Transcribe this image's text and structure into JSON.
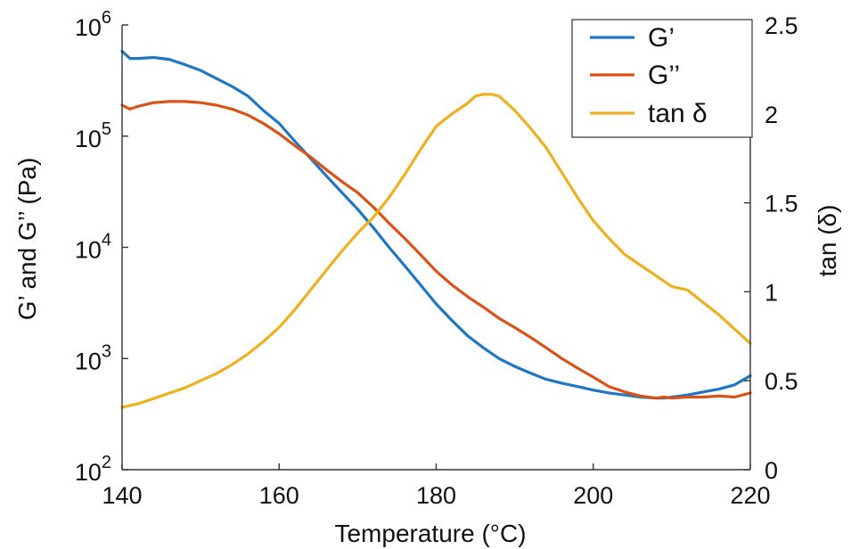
{
  "chart_data": {
    "type": "line",
    "title": "",
    "xlabel": "Temperature (°C)",
    "ylabel_left": "G’ and G’’ (Pa)",
    "ylabel_right": "tan (δ)",
    "xlim": [
      140,
      220
    ],
    "ylim_left": [
      100,
      1000000
    ],
    "ylim_right": [
      0,
      2.5
    ],
    "left_scale": "log",
    "x_ticks": [
      "140",
      "160",
      "180",
      "200",
      "220"
    ],
    "y_left_ticks": [
      {
        "base": "10",
        "exp": "2"
      },
      {
        "base": "10",
        "exp": "3"
      },
      {
        "base": "10",
        "exp": "4"
      },
      {
        "base": "10",
        "exp": "5"
      },
      {
        "base": "10",
        "exp": "6"
      }
    ],
    "y_right_ticks": [
      "0",
      "0.5",
      "1",
      "1.5",
      "2",
      "2.5"
    ],
    "grid": false,
    "legend_position": "top-right",
    "series": [
      {
        "name": "G’",
        "axis": "left",
        "color": "#1f77c4",
        "x": [
          140,
          141,
          142,
          144,
          146,
          148,
          150,
          152,
          154,
          156,
          158,
          160,
          162,
          164,
          166,
          168,
          170,
          172,
          174,
          176,
          178,
          180,
          182,
          184,
          186,
          188,
          190,
          192,
          194,
          196,
          198,
          200,
          202,
          204,
          206,
          208,
          209,
          210,
          212,
          214,
          216,
          218,
          220
        ],
        "y": [
          580000,
          500000,
          500000,
          510000,
          490000,
          440000,
          390000,
          330000,
          280000,
          230000,
          170000,
          130000,
          90000,
          63000,
          44000,
          31000,
          22000,
          15000,
          10000,
          6800,
          4600,
          3100,
          2200,
          1600,
          1250,
          1000,
          850,
          740,
          650,
          600,
          560,
          520,
          490,
          470,
          450,
          440,
          440,
          450,
          470,
          500,
          530,
          580,
          700
        ]
      },
      {
        "name": "G’’",
        "axis": "left",
        "color": "#d95319",
        "x": [
          140,
          141,
          142,
          144,
          146,
          148,
          150,
          152,
          154,
          156,
          158,
          160,
          162,
          164,
          166,
          168,
          170,
          172,
          174,
          176,
          178,
          180,
          182,
          184,
          186,
          188,
          190,
          192,
          194,
          196,
          198,
          200,
          202,
          204,
          206,
          208,
          209,
          210,
          212,
          214,
          216,
          218,
          220
        ],
        "y": [
          190000,
          175000,
          185000,
          200000,
          205000,
          205000,
          200000,
          190000,
          175000,
          155000,
          130000,
          105000,
          82000,
          65000,
          50000,
          39000,
          31000,
          23000,
          16500,
          12000,
          8600,
          6100,
          4600,
          3600,
          2900,
          2300,
          1900,
          1550,
          1250,
          1000,
          820,
          680,
          560,
          500,
          460,
          440,
          450,
          440,
          450,
          450,
          460,
          450,
          490
        ]
      },
      {
        "name": "tan δ",
        "axis": "right",
        "color": "#edb120",
        "x": [
          140,
          142,
          144,
          146,
          148,
          150,
          152,
          154,
          156,
          158,
          160,
          162,
          164,
          166,
          168,
          170,
          172,
          174,
          176,
          178,
          180,
          182,
          184,
          185,
          186,
          187,
          188,
          190,
          192,
          194,
          196,
          198,
          200,
          202,
          204,
          206,
          208,
          210,
          212,
          214,
          216,
          218,
          220
        ],
        "y": [
          0.35,
          0.37,
          0.4,
          0.43,
          0.46,
          0.5,
          0.54,
          0.59,
          0.65,
          0.72,
          0.8,
          0.9,
          1.01,
          1.12,
          1.23,
          1.33,
          1.42,
          1.53,
          1.66,
          1.8,
          1.93,
          2.0,
          2.06,
          2.1,
          2.11,
          2.11,
          2.1,
          2.02,
          1.92,
          1.81,
          1.67,
          1.53,
          1.4,
          1.3,
          1.21,
          1.15,
          1.09,
          1.03,
          1.01,
          0.94,
          0.87,
          0.79,
          0.71
        ]
      }
    ]
  }
}
